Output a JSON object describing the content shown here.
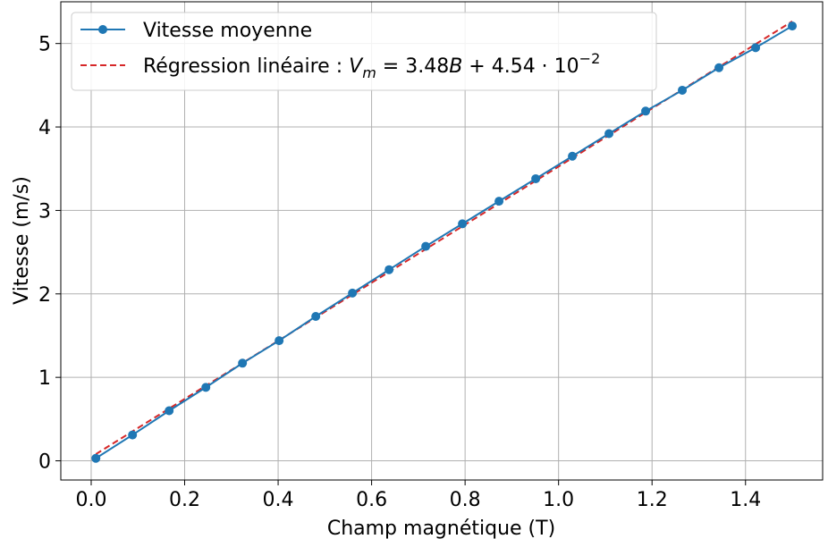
{
  "chart_data": {
    "type": "line",
    "xlabel": "Champ magnétique (T)",
    "ylabel": "Vitesse (m/s)",
    "xlim": [
      -0.065,
      1.565
    ],
    "ylim": [
      -0.23,
      5.5
    ],
    "xticks": [
      0.0,
      0.2,
      0.4,
      0.6,
      0.8,
      1.0,
      1.2,
      1.4
    ],
    "xtick_labels": [
      "0.0",
      "0.2",
      "0.4",
      "0.6",
      "0.8",
      "1.0",
      "1.2",
      "1.4"
    ],
    "yticks": [
      0,
      1,
      2,
      3,
      4,
      5
    ],
    "ytick_labels": [
      "0",
      "1",
      "2",
      "3",
      "4",
      "5"
    ],
    "grid": true,
    "legend_position": "top-left",
    "series": [
      {
        "name": "Vitesse moyenne",
        "style": "line-markers",
        "color": "#1f77b4",
        "x": [
          0.01,
          0.0884,
          0.1668,
          0.2453,
          0.3237,
          0.4021,
          0.4805,
          0.5589,
          0.6374,
          0.7158,
          0.7942,
          0.8726,
          0.9511,
          1.0295,
          1.1079,
          1.1863,
          1.2647,
          1.3432,
          1.4216,
          1.5
        ],
        "y": [
          0.03,
          0.31,
          0.6,
          0.88,
          1.17,
          1.44,
          1.73,
          2.01,
          2.29,
          2.57,
          2.84,
          3.11,
          3.38,
          3.65,
          3.92,
          4.19,
          4.44,
          4.71,
          4.95,
          5.21
        ]
      },
      {
        "name_prefix": "Régression linéaire : ",
        "name_math": {
          "lhs_var": "V",
          "lhs_sub": "m",
          "eq": " = 3.48",
          "var": "B",
          "plus": " + 4.54 ⋅ 10",
          "exp": "−2"
        },
        "style": "dashed",
        "color": "#d62728",
        "slope": 3.48,
        "intercept": 0.0454,
        "x": [
          0.01,
          1.5
        ]
      }
    ]
  }
}
